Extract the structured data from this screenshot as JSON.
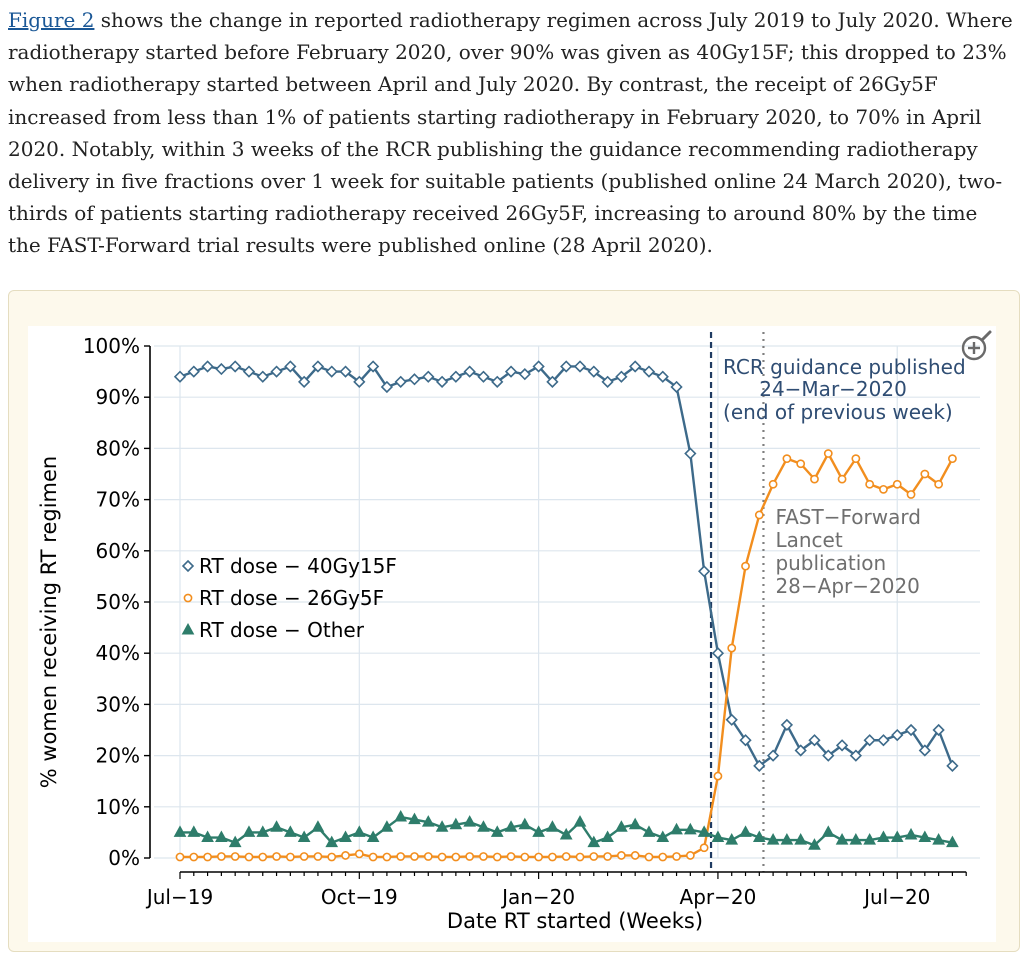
{
  "caption": {
    "figure_link": "Figure 2",
    "text": " shows the change in reported radiotherapy regimen across July 2019 to July 2020. Where radiotherapy started before February 2020, over 90% was given as 40Gy15F; this dropped to 23% when radiotherapy started between April and July 2020. By contrast, the receipt of 26Gy5F increased from less than 1% of patients starting radiotherapy in February 2020, to 70% in April 2020. Notably, within 3 weeks of the RCR publishing the guidance recommending radiotherapy delivery in five fractions over 1 week for suitable patients (published online 24 March 2020), two-thirds of patients starting radiotherapy received 26Gy5F, increasing to around 80% by the time the FAST-Forward trial results were published online (28 April 2020)."
  },
  "colors": {
    "series_40gy": "#3d6a8a",
    "series_26gy": "#f28e1e",
    "series_other": "#2e7d6b",
    "gridline": "#dde6ee",
    "vline_rcr": "#1f3b62",
    "vline_fast": "#7f7f7f",
    "annotation_rcr": "#2f4d73",
    "annotation_fast": "#6f6f6f",
    "zoom_icon": "#6a6a6a"
  },
  "icons": {
    "zoom": "zoom-in-icon"
  },
  "chart_data": {
    "type": "line",
    "title": "",
    "xlabel": "Date RT started (Weeks)",
    "ylabel": "% women receiving RT regimen",
    "ylim": [
      0,
      100
    ],
    "yticks": [
      0,
      10,
      20,
      30,
      40,
      50,
      60,
      70,
      80,
      90,
      100
    ],
    "ytick_labels": [
      "0%",
      "10%",
      "20%",
      "30%",
      "40%",
      "50%",
      "60%",
      "70%",
      "80%",
      "90%",
      "100%"
    ],
    "xlim": [
      0,
      58
    ],
    "xticks": [
      0,
      13,
      26,
      39,
      52
    ],
    "xtick_labels": [
      "Jul−19",
      "Oct−19",
      "Jan−20",
      "Apr−20",
      "Jul−20"
    ],
    "x_weeks": [
      0,
      1,
      2,
      3,
      4,
      5,
      6,
      7,
      8,
      9,
      10,
      11,
      12,
      13,
      14,
      15,
      16,
      17,
      18,
      19,
      20,
      21,
      22,
      23,
      24,
      25,
      26,
      27,
      28,
      29,
      30,
      31,
      32,
      33,
      34,
      35,
      36,
      37,
      38,
      39,
      40,
      41,
      42,
      43,
      44,
      45,
      46,
      47,
      48,
      49,
      50,
      51,
      52,
      53,
      54,
      55,
      56
    ],
    "legend_position": "center-left",
    "series": [
      {
        "name": "RT dose − 40Gy15F",
        "marker": "diamond",
        "values": [
          94,
          95,
          96,
          95.5,
          96,
          95,
          94,
          95,
          96,
          93,
          96,
          95,
          95,
          93,
          96,
          92,
          93,
          93.5,
          94,
          93,
          94,
          95,
          94,
          93,
          95,
          94.5,
          96,
          93,
          96,
          96,
          95,
          93,
          94,
          96,
          95,
          94,
          92,
          79,
          56,
          40,
          27,
          23,
          18,
          20,
          26,
          21,
          23,
          20,
          22,
          20,
          23,
          23,
          24,
          25,
          21,
          25,
          18
        ],
        "values_printed": null
      },
      {
        "name": "RT dose − 26Gy5F",
        "marker": "circle",
        "values": [
          0.2,
          0.2,
          0.2,
          0.3,
          0.3,
          0.2,
          0.2,
          0.3,
          0.2,
          0.3,
          0.3,
          0.2,
          0.5,
          0.8,
          0.2,
          0.2,
          0.3,
          0.3,
          0.3,
          0.2,
          0.2,
          0.3,
          0.3,
          0.2,
          0.3,
          0.2,
          0.2,
          0.2,
          0.3,
          0.2,
          0.3,
          0.3,
          0.5,
          0.5,
          0.2,
          0.2,
          0.3,
          0.5,
          2,
          16,
          41,
          57,
          67,
          73,
          78,
          77,
          74,
          79,
          74,
          78,
          73,
          72,
          73,
          71,
          75,
          73,
          78
        ],
        "values_printed": null
      },
      {
        "name": "RT dose − Other",
        "marker": "triangle",
        "values": [
          5,
          5,
          4,
          4,
          3,
          5,
          5,
          6,
          5,
          4,
          6,
          3,
          4,
          5,
          4,
          6,
          8,
          7.5,
          7,
          6,
          6.5,
          7,
          6,
          5,
          6,
          6.5,
          5,
          6,
          4.5,
          7,
          3,
          4,
          6,
          6.5,
          5,
          4,
          5.5,
          5.5,
          5,
          4,
          3.5,
          5,
          4,
          3.5,
          3.5,
          3.5,
          2.5,
          5,
          3.5,
          3.5,
          3.5,
          4,
          4,
          4.5,
          4,
          3.5,
          3
        ]
      }
    ],
    "vlines": [
      {
        "x": 38.5,
        "label": "RCR guidance published"
      },
      {
        "x": 42.3,
        "label": "FAST−Forward Lancet publication"
      }
    ],
    "annotations": {
      "rcr": [
        "RCR guidance published",
        "24−Mar−2020",
        "(end of previous week)"
      ],
      "fast": [
        "FAST−Forward",
        "Lancet",
        "publication",
        "28−Apr−2020"
      ]
    }
  }
}
